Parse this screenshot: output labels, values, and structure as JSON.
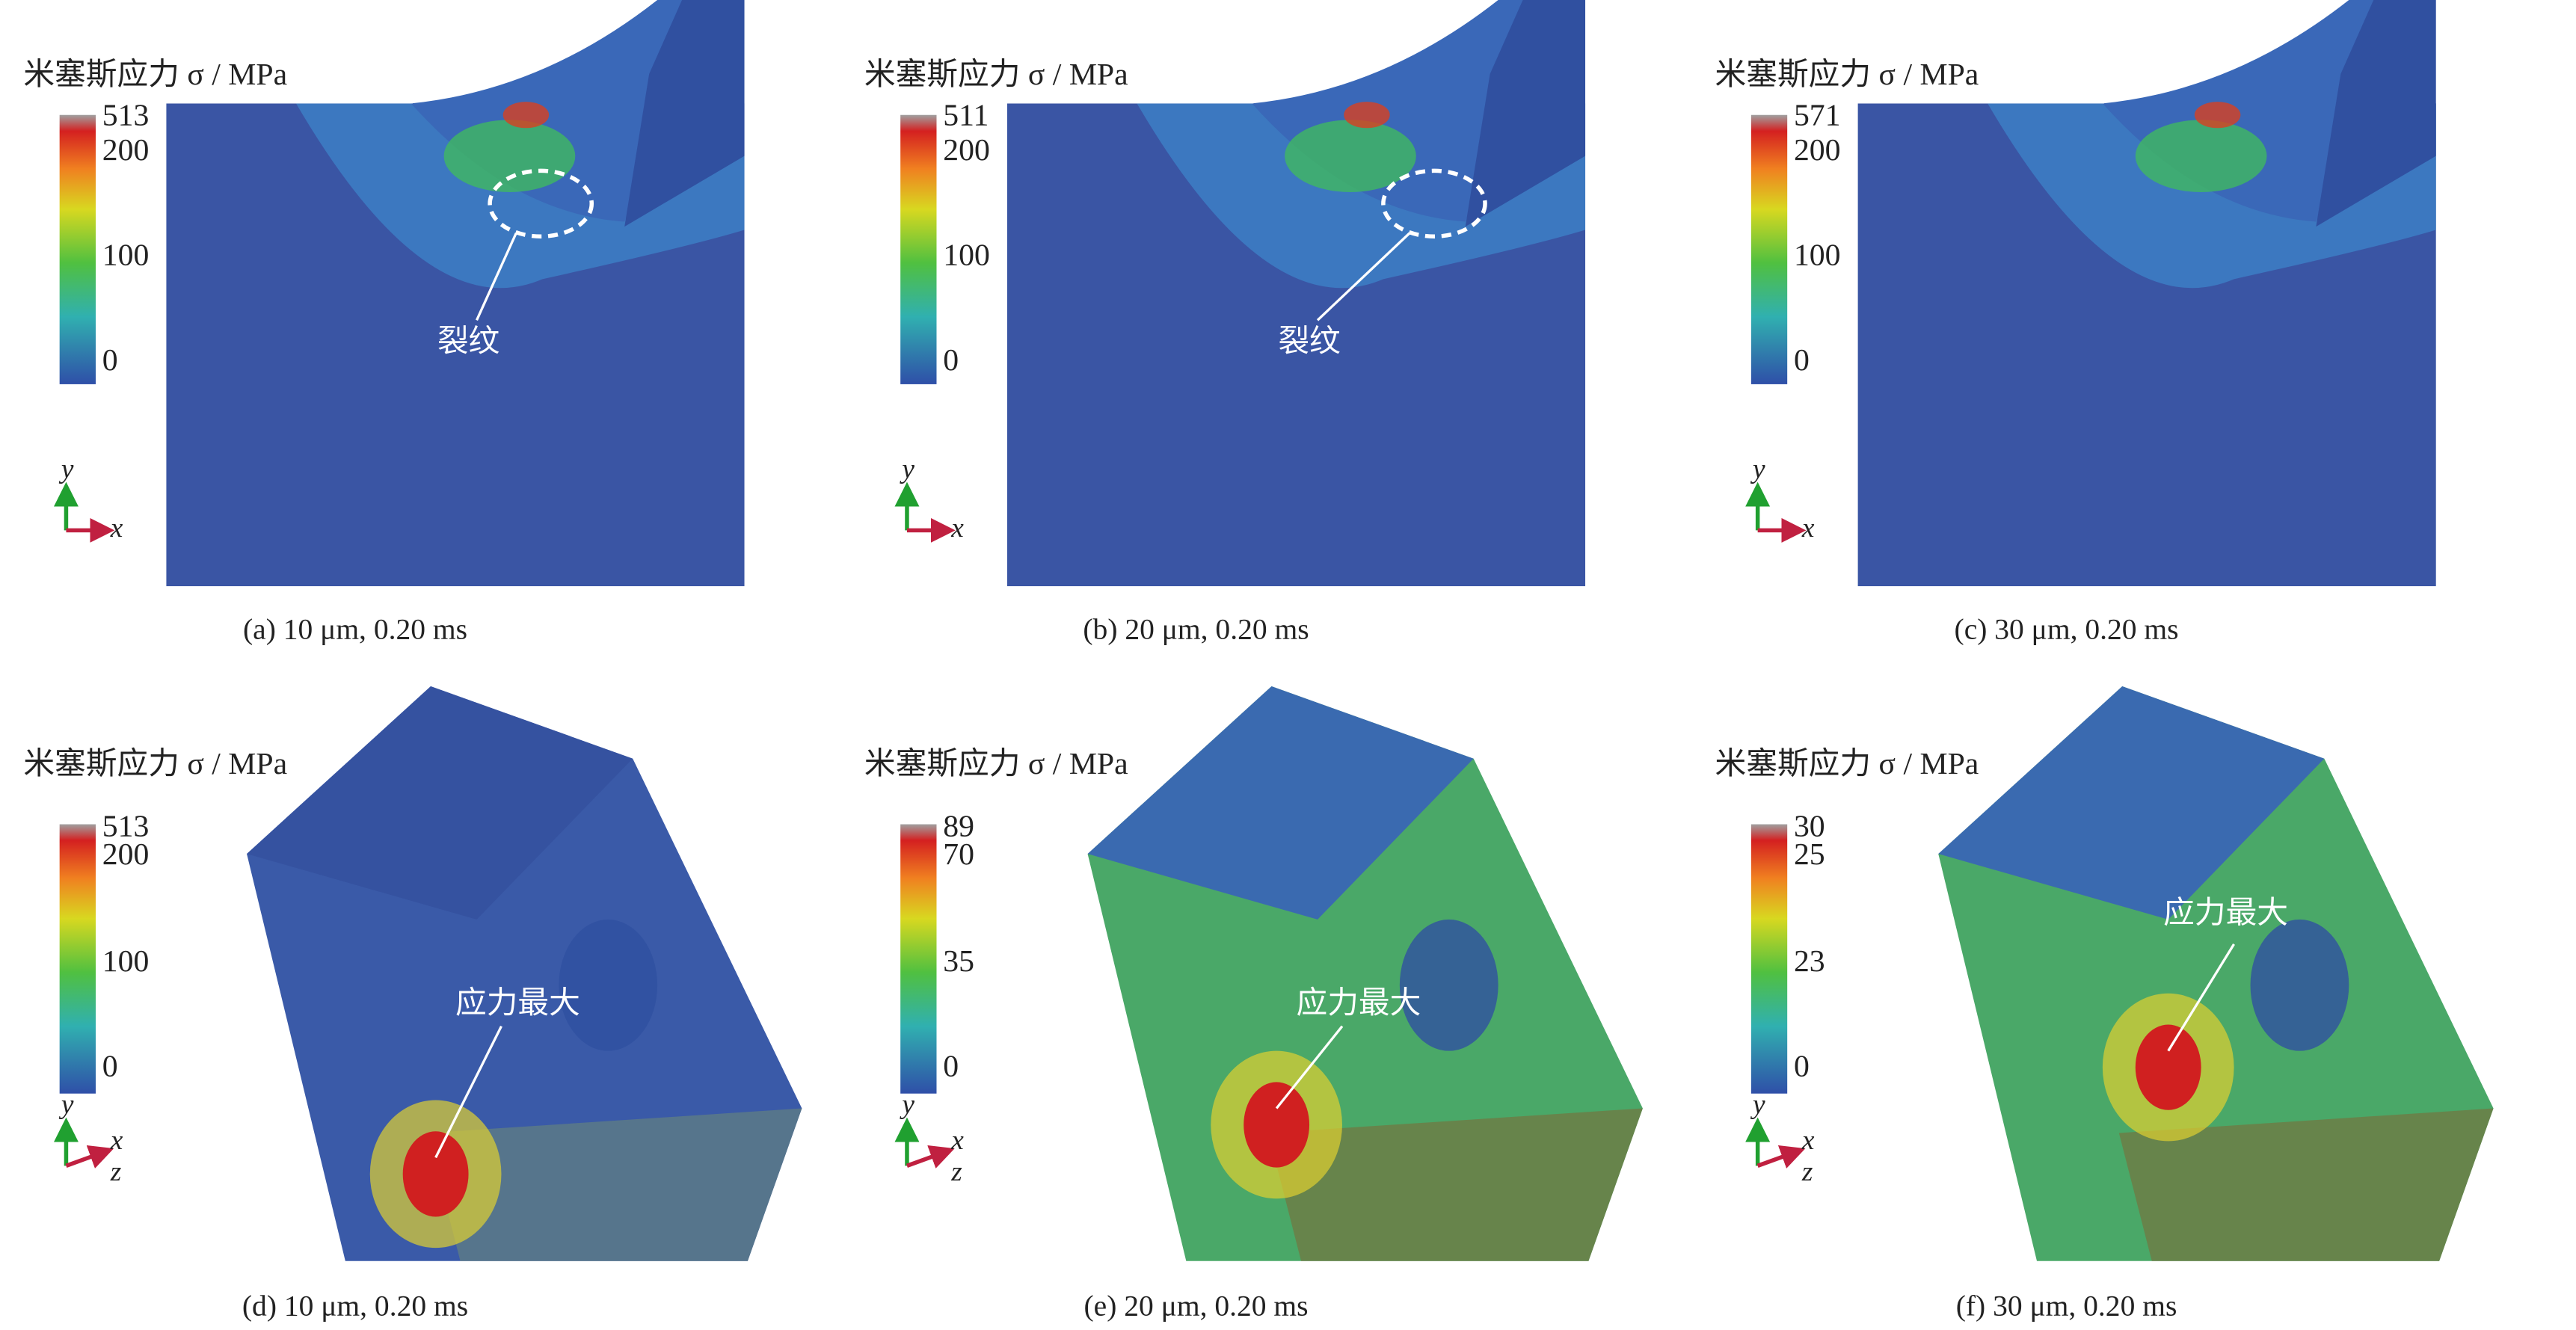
{
  "panels": [
    {
      "legend_title": "米塞斯应力 σ / MPa",
      "legend_ticks": [
        "513",
        "200",
        "100",
        "0"
      ],
      "axis_labels": [
        "y",
        "x"
      ],
      "annotation": "裂纹",
      "caption": "(a) 10 μm, 0.20 ms"
    },
    {
      "legend_title": "米塞斯应力 σ / MPa",
      "legend_ticks": [
        "511",
        "200",
        "100",
        "0"
      ],
      "axis_labels": [
        "y",
        "x"
      ],
      "annotation": "裂纹",
      "caption": "(b) 20 μm, 0.20 ms"
    },
    {
      "legend_title": "米塞斯应力 σ / MPa",
      "legend_ticks": [
        "571",
        "200",
        "100",
        "0"
      ],
      "axis_labels": [
        "y",
        "x"
      ],
      "caption": "(c) 30 μm, 0.20 ms"
    },
    {
      "legend_title": "米塞斯应力 σ / MPa",
      "legend_ticks": [
        "513",
        "200",
        "100",
        "0"
      ],
      "axis_labels": [
        "y",
        "x",
        "z"
      ],
      "annotation": "应力最大",
      "caption": "(d) 10 μm, 0.20 ms"
    },
    {
      "legend_title": "米塞斯应力 σ / MPa",
      "legend_ticks": [
        "89",
        "70",
        "35",
        "0"
      ],
      "axis_labels": [
        "y",
        "x",
        "z"
      ],
      "annotation": "应力最大",
      "caption": "(e) 20 μm, 0.20 ms"
    },
    {
      "legend_title": "米塞斯应力 σ / MPa",
      "legend_ticks": [
        "30",
        "25",
        "23",
        "0"
      ],
      "axis_labels": [
        "y",
        "x",
        "z"
      ],
      "annotation": "应力最大",
      "caption": "(f) 30 μm, 0.20 ms"
    }
  ]
}
